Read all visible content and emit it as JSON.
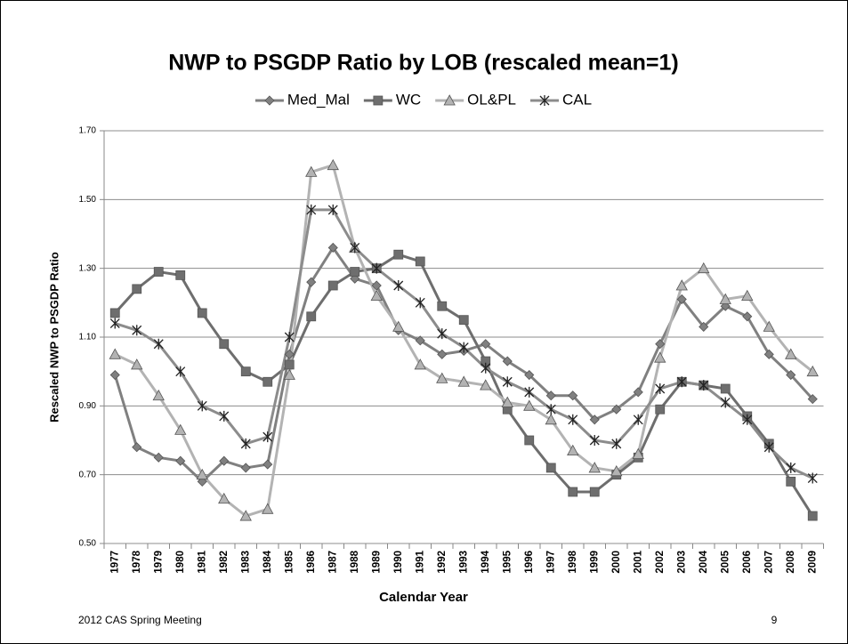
{
  "chart_data": {
    "type": "line",
    "title": "NWP to PSGDP Ratio by LOB (rescaled mean=1)",
    "x_label": "Calendar Year",
    "y_label": "Rescaled NWP to PSGDP Ratio",
    "categories": [
      "1977",
      "1978",
      "1979",
      "1980",
      "1981",
      "1982",
      "1983",
      "1984",
      "1985",
      "1986",
      "1987",
      "1988",
      "1989",
      "1990",
      "1991",
      "1992",
      "1993",
      "1994",
      "1995",
      "1996",
      "1997",
      "1998",
      "1999",
      "2000",
      "2001",
      "2002",
      "2003",
      "2004",
      "2005",
      "2006",
      "2007",
      "2008",
      "2009"
    ],
    "series": [
      {
        "name": "Med_Mal",
        "color": "#808080",
        "marker": "diamond",
        "values": [
          0.99,
          0.78,
          0.75,
          0.74,
          0.68,
          0.74,
          0.72,
          0.73,
          1.05,
          1.26,
          1.36,
          1.27,
          1.25,
          1.12,
          1.09,
          1.05,
          1.06,
          1.08,
          1.03,
          0.99,
          0.93,
          0.93,
          0.86,
          0.89,
          0.94,
          1.08,
          1.21,
          1.13,
          1.19,
          1.16,
          1.05,
          0.99,
          0.92
        ]
      },
      {
        "name": "WC",
        "color": "#6e6e6e",
        "marker": "square",
        "values": [
          1.17,
          1.24,
          1.29,
          1.28,
          1.17,
          1.08,
          1.0,
          0.97,
          1.02,
          1.16,
          1.25,
          1.29,
          1.3,
          1.34,
          1.32,
          1.19,
          1.15,
          1.03,
          0.89,
          0.8,
          0.72,
          0.65,
          0.65,
          0.7,
          0.75,
          0.89,
          0.97,
          0.96,
          0.95,
          0.87,
          0.79,
          0.68,
          0.58
        ]
      },
      {
        "name": "OL&PL",
        "color": "#b3b3b3",
        "marker": "triangle",
        "values": [
          1.05,
          1.02,
          0.93,
          0.83,
          0.7,
          0.63,
          0.58,
          0.6,
          0.99,
          1.58,
          1.6,
          1.36,
          1.22,
          1.13,
          1.02,
          0.98,
          0.97,
          0.96,
          0.91,
          0.9,
          0.86,
          0.77,
          0.72,
          0.71,
          0.76,
          1.04,
          1.25,
          1.3,
          1.21,
          1.22,
          1.13,
          1.05,
          1.0
        ]
      },
      {
        "name": "CAL",
        "color": "#8c8c8c",
        "marker": "asterisk",
        "values": [
          1.14,
          1.12,
          1.08,
          1.0,
          0.9,
          0.87,
          0.79,
          0.81,
          1.1,
          1.47,
          1.47,
          1.36,
          1.3,
          1.25,
          1.2,
          1.11,
          1.07,
          1.01,
          0.97,
          0.94,
          0.89,
          0.86,
          0.8,
          0.79,
          0.86,
          0.95,
          0.97,
          0.96,
          0.91,
          0.86,
          0.78,
          0.72,
          0.69
        ]
      }
    ],
    "ylim": [
      0.5,
      1.7
    ],
    "yticks": [
      {
        "value": 0.5,
        "label": "0.50"
      },
      {
        "value": 0.7,
        "label": "0.70"
      },
      {
        "value": 0.9,
        "label": "0.90"
      },
      {
        "value": 1.1,
        "label": "1.10"
      },
      {
        "value": 1.3,
        "label": "1.30"
      },
      {
        "value": 1.5,
        "label": "1.50"
      },
      {
        "value": 1.7,
        "label": "1.70"
      }
    ],
    "grid": true,
    "legend": "top"
  },
  "footer": {
    "left": "2012 CAS Spring Meeting",
    "page": "9"
  }
}
